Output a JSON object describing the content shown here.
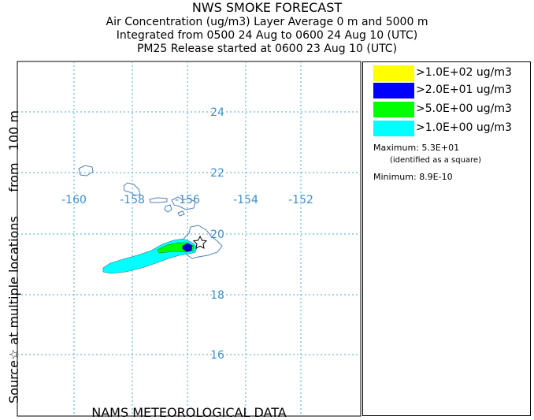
{
  "header": {
    "title": "NWS SMOKE FORECAST",
    "line1": "Air Concentration (ug/m3) Layer Average    0 m and  5000 m",
    "line2": "Integrated from 0500 24 Aug to 0600 24 Aug 10 (UTC)",
    "line3": "PM25 Release started at 0600 23 Aug 10 (UTC)"
  },
  "side_label": {
    "source_text": "Source",
    "source_symbol": "☆",
    "rest_text": "at multiple locations      from   100 m"
  },
  "footer": {
    "text": "NAMS METEOROLOGICAL DATA"
  },
  "map": {
    "longitude_labels": [
      "-160",
      "-158",
      "-156",
      "-154",
      "-152"
    ],
    "latitude_labels": [
      "24",
      "22",
      "20",
      "18",
      "16"
    ],
    "grid_color": "#4ea3d8",
    "label_color": "#3a8fc9",
    "coast_color": "#4f82b8",
    "source_marker": "star-icon"
  },
  "legend": {
    "items": [
      {
        "label": ">1.0E+02 ug/m3",
        "color": "#ffff00"
      },
      {
        "label": ">2.0E+01 ug/m3",
        "color": "#0000ff"
      },
      {
        "label": ">5.0E+00 ug/m3",
        "color": "#00ff00"
      },
      {
        "label": ">1.0E+00 ug/m3",
        "color": "#00ffff"
      }
    ],
    "maximum_label": "Maximum:",
    "maximum_value": "5.3E+01",
    "maximum_note": "(identified as a square)",
    "minimum_label": "Minimum:",
    "minimum_value": "8.9E-10"
  }
}
